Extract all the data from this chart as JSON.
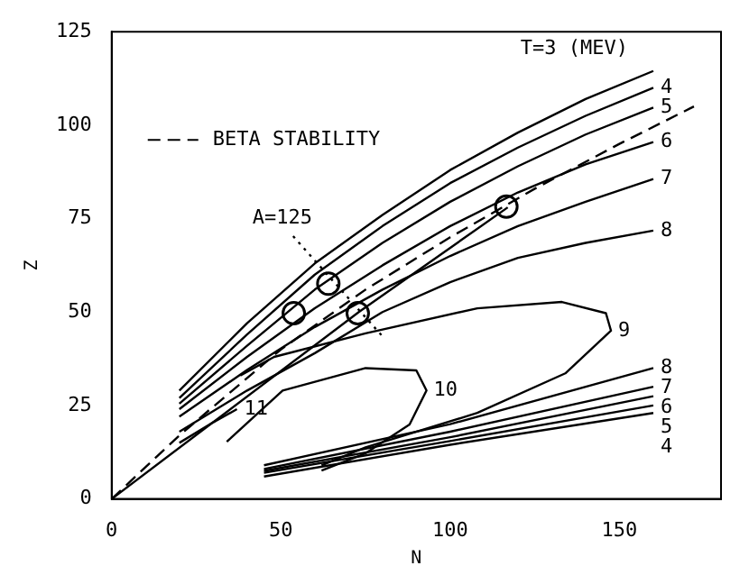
{
  "chart_data": {
    "type": "line",
    "xlabel": "N",
    "ylabel": "Z",
    "xlim": [
      0,
      180
    ],
    "ylim": [
      0,
      125
    ],
    "xticks": [
      0,
      50,
      100,
      150
    ],
    "yticks": [
      0,
      25,
      50,
      75,
      100,
      125
    ],
    "grid": false,
    "legend": "top left",
    "series": [
      {
        "name": "BETA STABILITY",
        "color": "#000000",
        "line_style": "dashed",
        "x": [
          0,
          20,
          50,
          75,
          100,
          125,
          150,
          172
        ],
        "values": [
          0,
          17,
          40,
          56,
          70,
          83,
          95,
          105
        ]
      },
      {
        "name": "T=3 (MEV)",
        "color": "#000000",
        "line_style": "solid",
        "x": [
          20,
          40,
          60,
          80,
          100,
          120,
          140,
          160
        ],
        "values": [
          29,
          47,
          63,
          76,
          88,
          98,
          107,
          114.5
        ]
      },
      {
        "name": "4",
        "color": "#000000",
        "line_style": "solid",
        "x": [
          20,
          40,
          60,
          80,
          100,
          120,
          140,
          160
        ],
        "values": [
          27,
          44,
          60,
          73,
          84.5,
          94,
          102.5,
          110
        ]
      },
      {
        "name": "5",
        "color": "#000000",
        "line_style": "solid",
        "x": [
          20,
          40,
          60,
          80,
          100,
          120,
          140,
          160
        ],
        "values": [
          25.5,
          41,
          56,
          68.5,
          79.5,
          89,
          97.5,
          104.7
        ]
      },
      {
        "name": "6",
        "color": "#000000",
        "line_style": "solid",
        "x": [
          20,
          40,
          60,
          80,
          100,
          120,
          140,
          160
        ],
        "values": [
          24,
          38,
          51,
          62.5,
          73,
          82,
          89.5,
          95.5
        ]
      },
      {
        "name": "7",
        "color": "#000000",
        "line_style": "solid",
        "x": [
          20,
          40,
          60,
          80,
          100,
          120,
          140,
          160
        ],
        "values": [
          22,
          34.5,
          46,
          56,
          65,
          73,
          79.5,
          85.6
        ]
      },
      {
        "name": "8",
        "color": "#000000",
        "line_style": "solid",
        "x": [
          20,
          40,
          60,
          80,
          100,
          120,
          140,
          160
        ],
        "values": [
          18,
          29,
          39,
          50,
          58,
          64.5,
          68.5,
          71.8
        ]
      },
      {
        "name": "9",
        "color": "#000000",
        "line_style": "solid",
        "x": [
          38,
          48,
          75,
          108,
          133,
          146,
          147.5,
          134,
          108,
          75,
          62
        ],
        "values": [
          33,
          38,
          44.3,
          51,
          52.7,
          49.7,
          45,
          33.6,
          23,
          13.8,
          9
        ]
      },
      {
        "name": "10",
        "color": "#000000",
        "line_style": "solid",
        "x": [
          34,
          50.5,
          75,
          90,
          93,
          88,
          75,
          62
        ],
        "values": [
          15.3,
          29,
          35,
          34.4,
          29,
          19.9,
          12.2,
          7.6
        ]
      },
      {
        "name": "11",
        "color": "#000000",
        "line_style": "solid",
        "x": [
          20,
          30,
          37
        ],
        "values": [
          15,
          20.5,
          24
        ]
      },
      {
        "name": "8",
        "color": "#000000",
        "line_style": "solid",
        "x": [
          45,
          100,
          160
        ],
        "values": [
          9,
          20,
          35
        ]
      },
      {
        "name": "7",
        "color": "#000000",
        "line_style": "solid",
        "x": [
          45,
          100,
          160
        ],
        "values": [
          8,
          18,
          30
        ]
      },
      {
        "name": "6",
        "color": "#000000",
        "line_style": "solid",
        "x": [
          45,
          100,
          160
        ],
        "values": [
          7.5,
          16.5,
          27.5
        ]
      },
      {
        "name": "5",
        "color": "#000000",
        "line_style": "solid",
        "x": [
          45,
          100,
          160
        ],
        "values": [
          7,
          15.5,
          25
        ]
      },
      {
        "name": "4",
        "color": "#000000",
        "line_style": "solid",
        "x": [
          45,
          100,
          160
        ],
        "values": [
          6,
          14.5,
          23
        ]
      },
      {
        "color": "#000000",
        "line_style": "solid",
        "x": [
          0,
          73,
          117
        ],
        "values": [
          0,
          50,
          78
        ]
      },
      {
        "name": "A=125",
        "color": "#000000",
        "line_style": "dotted",
        "x": [
          53.6,
          80
        ],
        "values": [
          70.3,
          43.5
        ]
      },
      {
        "type": "scatter",
        "marker": "circle",
        "color": "#000000",
        "x": [
          53.8,
          64,
          72.7,
          116.6
        ],
        "values": [
          49.7,
          57.6,
          49.7,
          78.2
        ]
      }
    ]
  }
}
